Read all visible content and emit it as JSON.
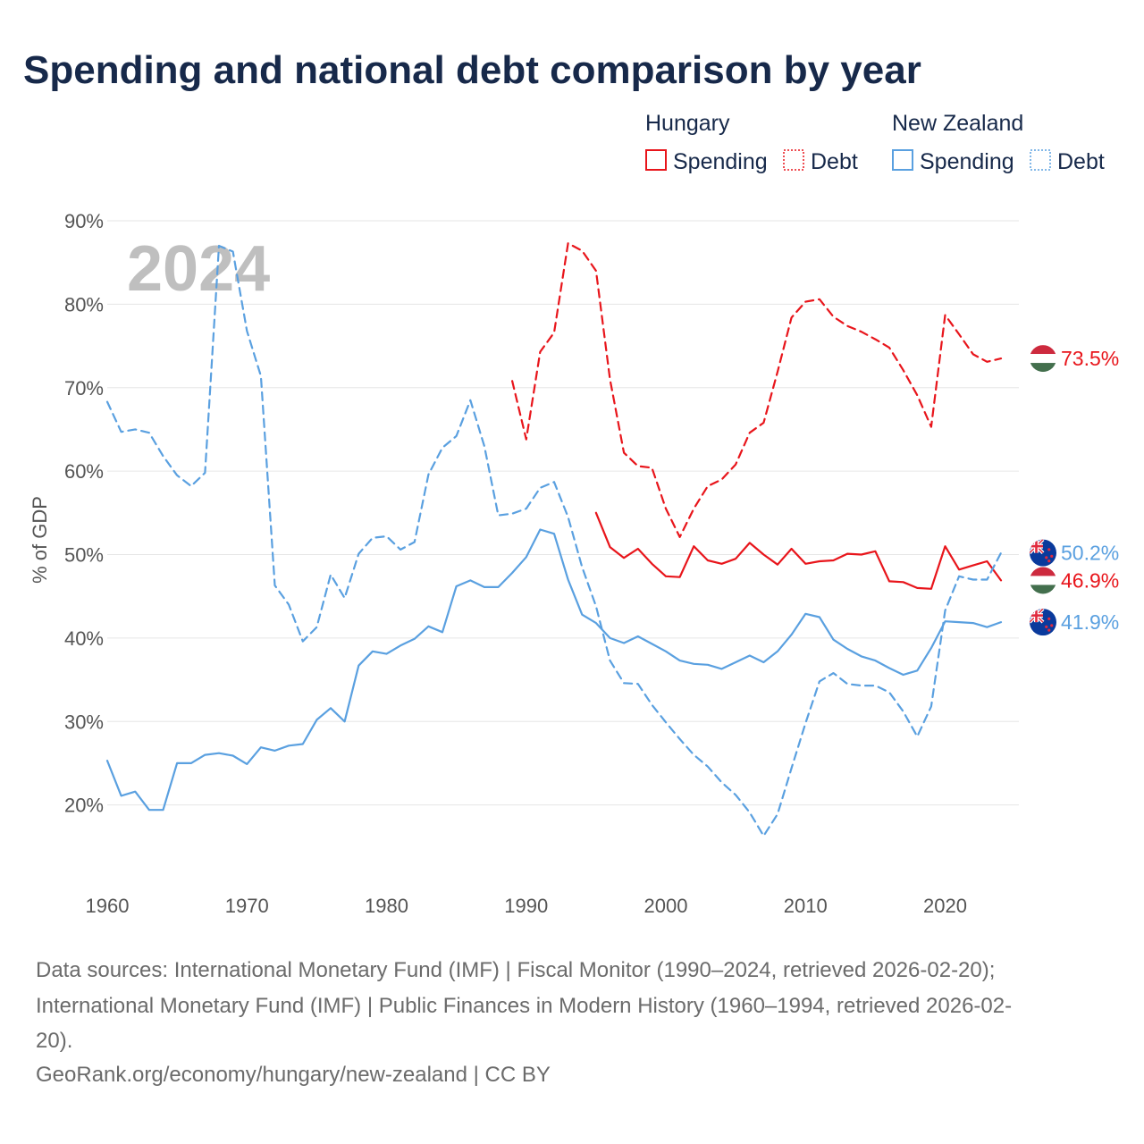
{
  "title": "Spending and national debt comparison by year",
  "legend": {
    "groups": [
      {
        "country": "Hungary",
        "items": [
          {
            "label": "Spending",
            "style": "solid",
            "color": "#e8151b"
          },
          {
            "label": "Debt",
            "style": "dotted",
            "color": "#e8151b"
          }
        ]
      },
      {
        "country": "New Zealand",
        "items": [
          {
            "label": "Spending",
            "style": "solid",
            "color": "#5aa0e0"
          },
          {
            "label": "Debt",
            "style": "dotted",
            "color": "#5aa0e0"
          }
        ]
      }
    ]
  },
  "year_watermark": "2024",
  "footer": {
    "lines": [
      "Data sources: International Monetary Fund (IMF) | Fiscal Monitor (1990–2024, retrieved 2026-02-20);",
      "International Monetary Fund (IMF) | Public Finances in Modern History (1960–1994, retrieved 2026-02-",
      "20).",
      "GeoRank.org/economy/hungary/new-zealand | CC BY"
    ]
  },
  "chart_data": {
    "type": "line",
    "title": "Spending and national debt comparison by year",
    "xlabel": "",
    "ylabel": "% of GDP",
    "xlim": [
      1960,
      2024
    ],
    "ylim": [
      10,
      90
    ],
    "xticks": [
      1960,
      1970,
      1980,
      1990,
      2000,
      2010,
      2020
    ],
    "yticks": [
      20,
      30,
      40,
      50,
      60,
      70,
      80,
      90
    ],
    "ytick_labels": [
      "20%",
      "30%",
      "40%",
      "50%",
      "60%",
      "70%",
      "80%",
      "90%"
    ],
    "grid": true,
    "legend_position": "top-right",
    "series": [
      {
        "name": "Hungary Debt",
        "color": "#e8151b",
        "style": "dashed",
        "end_label": "73.5%",
        "flag": "hungary-flag",
        "x": [
          1989,
          1990,
          1991,
          1992,
          1993,
          1994,
          1995,
          1996,
          1997,
          1998,
          1999,
          2000,
          2001,
          2002,
          2003,
          2004,
          2005,
          2006,
          2007,
          2008,
          2009,
          2010,
          2011,
          2012,
          2013,
          2014,
          2015,
          2016,
          2017,
          2018,
          2019,
          2020,
          2021,
          2022,
          2023,
          2024
        ],
        "y": [
          70.8,
          63.8,
          74.3,
          76.6,
          87.3,
          86.4,
          84.0,
          71.0,
          62.2,
          60.6,
          60.4,
          55.5,
          52.1,
          55.5,
          58.2,
          59.0,
          60.8,
          64.6,
          65.8,
          71.9,
          78.4,
          80.3,
          80.6,
          78.5,
          77.4,
          76.7,
          75.8,
          74.8,
          72.1,
          69.1,
          65.3,
          78.7,
          76.4,
          74.0,
          73.1,
          73.5
        ]
      },
      {
        "name": "Hungary Spending",
        "color": "#e8151b",
        "style": "solid",
        "end_label": "46.9%",
        "flag": "hungary-flag",
        "x": [
          1995,
          1996,
          1997,
          1998,
          1999,
          2000,
          2001,
          2002,
          2003,
          2004,
          2005,
          2006,
          2007,
          2008,
          2009,
          2010,
          2011,
          2012,
          2013,
          2014,
          2015,
          2016,
          2017,
          2018,
          2019,
          2020,
          2021,
          2022,
          2023,
          2024
        ],
        "y": [
          55.0,
          50.9,
          49.6,
          50.7,
          48.9,
          47.4,
          47.3,
          51.0,
          49.3,
          48.9,
          49.5,
          51.4,
          50.0,
          48.8,
          50.7,
          48.9,
          49.2,
          49.3,
          50.1,
          50.0,
          50.4,
          46.8,
          46.7,
          46.0,
          45.9,
          51.0,
          48.2,
          48.7,
          49.2,
          46.9
        ]
      },
      {
        "name": "New Zealand Debt",
        "color": "#5aa0e0",
        "style": "dashed",
        "end_label": "50.2%",
        "flag": "new-zealand-flag",
        "x": [
          1960,
          1961,
          1962,
          1963,
          1964,
          1965,
          1966,
          1967,
          1968,
          1969,
          1970,
          1971,
          1972,
          1973,
          1974,
          1975,
          1976,
          1977,
          1978,
          1979,
          1980,
          1981,
          1982,
          1983,
          1984,
          1985,
          1986,
          1987,
          1988,
          1989,
          1990,
          1991,
          1992,
          1993,
          1994,
          1995,
          1996,
          1997,
          1998,
          1999,
          2000,
          2001,
          2002,
          2003,
          2004,
          2005,
          2006,
          2007,
          2008,
          2009,
          2010,
          2011,
          2012,
          2013,
          2014,
          2015,
          2016,
          2017,
          2018,
          2019,
          2020,
          2021,
          2022,
          2023,
          2024
        ],
        "y": [
          68.3,
          64.7,
          65.0,
          64.6,
          61.8,
          59.5,
          58.2,
          59.8,
          87.0,
          86.3,
          76.8,
          71.4,
          46.3,
          44.0,
          39.6,
          41.3,
          47.6,
          44.8,
          50.1,
          52.0,
          52.2,
          50.6,
          51.5,
          59.6,
          62.8,
          64.2,
          68.5,
          63.0,
          54.7,
          54.9,
          55.5,
          58.0,
          58.7,
          54.5,
          48.5,
          43.8,
          37.3,
          34.6,
          34.5,
          32.0,
          29.9,
          27.9,
          26.0,
          24.6,
          22.7,
          21.2,
          19.1,
          16.3,
          18.9,
          24.4,
          29.8,
          34.8,
          35.8,
          34.5,
          34.3,
          34.3,
          33.5,
          31.2,
          28.2,
          31.8,
          43.3,
          47.4,
          47.0,
          47.0,
          50.2
        ]
      },
      {
        "name": "New Zealand Spending",
        "color": "#5aa0e0",
        "style": "solid",
        "end_label": "41.9%",
        "flag": "new-zealand-flag",
        "x": [
          1960,
          1961,
          1962,
          1963,
          1964,
          1965,
          1966,
          1967,
          1968,
          1969,
          1970,
          1971,
          1972,
          1973,
          1974,
          1975,
          1976,
          1977,
          1978,
          1979,
          1980,
          1981,
          1982,
          1983,
          1984,
          1985,
          1986,
          1987,
          1988,
          1989,
          1990,
          1991,
          1992,
          1993,
          1994,
          1995,
          1996,
          1997,
          1998,
          1999,
          2000,
          2001,
          2002,
          2003,
          2004,
          2005,
          2006,
          2007,
          2008,
          2009,
          2010,
          2011,
          2012,
          2013,
          2014,
          2015,
          2016,
          2017,
          2018,
          2019,
          2020,
          2021,
          2022,
          2023,
          2024
        ],
        "y": [
          25.3,
          21.1,
          21.6,
          19.4,
          19.4,
          25.0,
          25.0,
          26.0,
          26.2,
          25.9,
          24.9,
          26.9,
          26.5,
          27.1,
          27.3,
          30.2,
          31.6,
          30.0,
          36.7,
          38.4,
          38.1,
          39.1,
          39.9,
          41.4,
          40.7,
          46.2,
          46.9,
          46.1,
          46.1,
          47.8,
          49.7,
          53.0,
          52.5,
          47.0,
          42.8,
          41.8,
          40.0,
          39.4,
          40.2,
          39.3,
          38.4,
          37.3,
          36.9,
          36.8,
          36.3,
          37.1,
          37.9,
          37.1,
          38.4,
          40.4,
          42.9,
          42.5,
          39.8,
          38.7,
          37.8,
          37.3,
          36.4,
          35.6,
          36.1,
          38.8,
          42.0,
          41.9,
          41.8,
          41.3,
          41.9
        ]
      }
    ]
  }
}
